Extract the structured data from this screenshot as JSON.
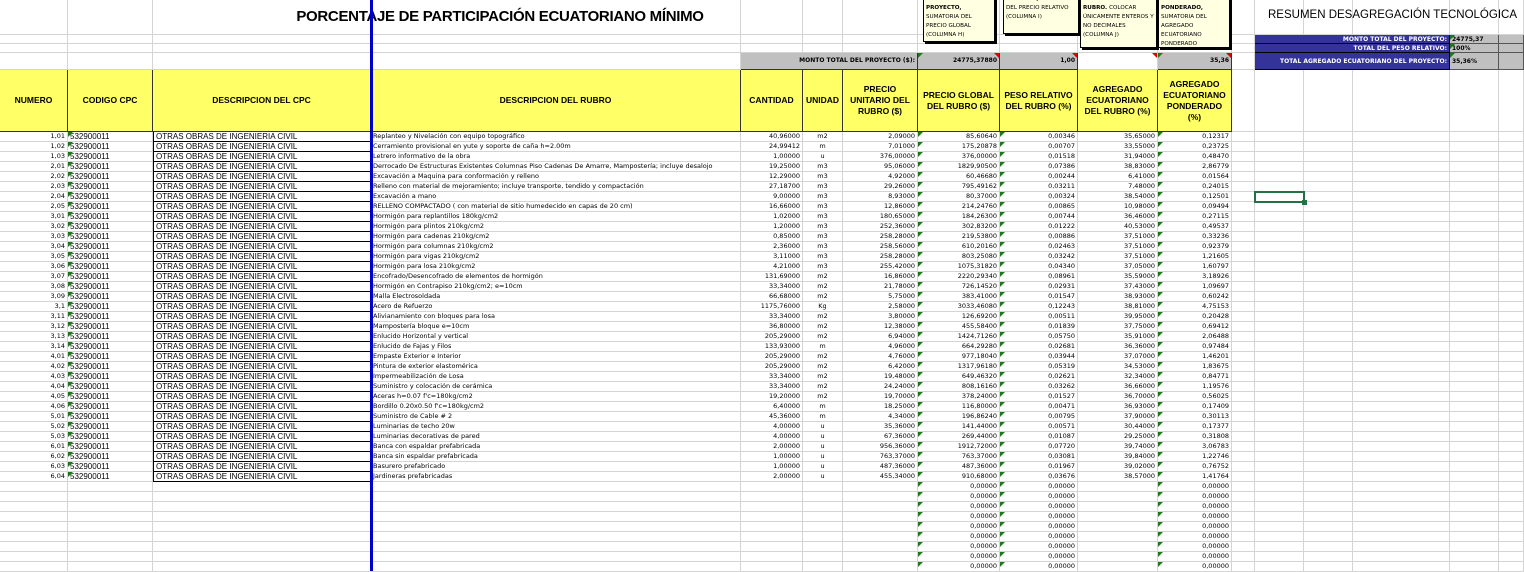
{
  "title": "PORCENTAJE DE PARTICIPACIÓN ECUATORIANO MÍNIMO",
  "summary": {
    "title": "RESUMEN DESAGREGACIÓN TECNOLÓGICA",
    "rows": [
      {
        "label": "MONTO TOTAL DEL PROYECTO:",
        "value": "24775,37"
      },
      {
        "label": "TOTAL DEL PESO RELATIVO:",
        "value": "100%"
      },
      {
        "label": "TOTAL AGREGADO ECUATORIANO DEL PROYECTO:",
        "value": "35,36%"
      }
    ]
  },
  "notes": [
    {
      "bold": "TOTAL DEL PROYECTO,",
      "text": "SUMATORIA DEL PRECIO GLOBAL (COLUMNA H)"
    },
    {
      "bold": "RELATIVO,",
      "text": "SUMATORIA DEL PRECIO RELATIVO (COLUMNA I)"
    },
    {
      "bold": "ECUATORIANO DEL RUBRO.",
      "text": "COLOCAR ÚNICAMENTE ENTEROS Y NO DECIMALES (COLUMNA J)"
    },
    {
      "bold": "ECUATORIANO PONDERADO,",
      "text": "SUMATORIA DEL AGREGADO ECUATORIANO PONDERADO (COLUMNA K)"
    }
  ],
  "totals": {
    "label": "MONTO TOTAL DEL PROYECTO ($):",
    "precio_global": "24775,37880",
    "peso_relativo": "1,00",
    "ponderado": "35,36"
  },
  "headers": [
    "NUMERO",
    "CODIGO CPC",
    "DESCRIPCION DEL CPC",
    "DESCRIPCION DEL RUBRO",
    "CANTIDAD",
    "UNIDAD",
    "PRECIO UNITARIO DEL RUBRO ($)",
    "PRECIO GLOBAL DEL RUBRO ($)",
    "PESO RELATIVO DEL RUBRO (%)",
    "AGREGADO ECUATORIANO DEL RUBRO (%)",
    "AGREGADO ECUATORIANO PONDERADO (%)"
  ],
  "cpc_code": "532900011",
  "cpc_desc": "OTRAS OBRAS DE INGENIERIA CIVIL",
  "rows": [
    [
      "1,01",
      "Replanteo y Nivelación con equipo topográfico",
      "40,96000",
      "m2",
      "2,09000",
      "85,60640",
      "0,00346",
      "35,65000",
      "0,12317"
    ],
    [
      "1,02",
      "Cerramiento provisional en yute y soporte de caña h=2.00m",
      "24,99412",
      "m",
      "7,01000",
      "175,20878",
      "0,00707",
      "33,55000",
      "0,23725"
    ],
    [
      "1,03",
      "Letrero informativo de la obra",
      "1,00000",
      "u",
      "376,00000",
      "376,00000",
      "0,01518",
      "31,94000",
      "0,48470"
    ],
    [
      "2,01",
      "Derrocado De Estructuras Existentes Columnas Piso Cadenas De Amarre, Mampostería; incluye desalojo",
      "19,25000",
      "m3",
      "95,06000",
      "1829,90500",
      "0,07386",
      "38,83000",
      "2,86779"
    ],
    [
      "2,02",
      "Excavación a Maquina para conformación y relleno",
      "12,29000",
      "m3",
      "4,92000",
      "60,46680",
      "0,00244",
      "6,41000",
      "0,01564"
    ],
    [
      "2,03",
      "Relleno con material de mejoramiento; incluye transporte, tendido y compactación",
      "27,18700",
      "m3",
      "29,26000",
      "795,49162",
      "0,03211",
      "7,48000",
      "0,24015"
    ],
    [
      "2,04",
      "Excavación a mano",
      "9,00000",
      "m3",
      "8,93000",
      "80,37000",
      "0,00324",
      "38,54000",
      "0,12501"
    ],
    [
      "2,05",
      "RELLENO COMPACTADO ( con material de sitio humedecido en capas de 20 cm)",
      "16,66000",
      "m3",
      "12,86000",
      "214,24760",
      "0,00865",
      "10,98000",
      "0,09494"
    ],
    [
      "3,01",
      "Hormigón para replantillos 180kg/cm2",
      "1,02000",
      "m3",
      "180,65000",
      "184,26300",
      "0,00744",
      "36,46000",
      "0,27115"
    ],
    [
      "3,02",
      "Hormigón para plintos 210kg/cm2",
      "1,20000",
      "m3",
      "252,36000",
      "302,83200",
      "0,01222",
      "40,53000",
      "0,49537"
    ],
    [
      "3,03",
      "Hormigón para cadenas 210kg/cm2",
      "0,85000",
      "m3",
      "258,28000",
      "219,53800",
      "0,00886",
      "37,51000",
      "0,33236"
    ],
    [
      "3,04",
      "Hormigón para columnas 210kg/cm2",
      "2,36000",
      "m3",
      "258,56000",
      "610,20160",
      "0,02463",
      "37,51000",
      "0,92379"
    ],
    [
      "3,05",
      "Hormigón para vigas 210kg/cm2",
      "3,11000",
      "m3",
      "258,28000",
      "803,25080",
      "0,03242",
      "37,51000",
      "1,21605"
    ],
    [
      "3,06",
      "Hormigón para losa 210kg/cm2",
      "4,21000",
      "m3",
      "255,42000",
      "1075,31820",
      "0,04340",
      "37,05000",
      "1,60797"
    ],
    [
      "3,07",
      "Encofrado/Desencofrado de elementos de hormigón",
      "131,69000",
      "m2",
      "16,86000",
      "2220,29340",
      "0,08961",
      "35,59000",
      "3,18926"
    ],
    [
      "3,08",
      "Hormigón en Contrapiso 210kg/cm2; e=10cm",
      "33,34000",
      "m2",
      "21,78000",
      "726,14520",
      "0,02931",
      "37,43000",
      "1,09697"
    ],
    [
      "3,09",
      "Malla Electrosoldada",
      "66,68000",
      "m2",
      "5,75000",
      "383,41000",
      "0,01547",
      "38,93000",
      "0,60242"
    ],
    [
      "3,1",
      "Acero de Refuerzo",
      "1175,76000",
      "Kg",
      "2,58000",
      "3033,46080",
      "0,12243",
      "38,81000",
      "4,75153"
    ],
    [
      "3,11",
      "Alivianamiento con bloques para losa",
      "33,34000",
      "m2",
      "3,80000",
      "126,69200",
      "0,00511",
      "39,95000",
      "0,20428"
    ],
    [
      "3,12",
      "Mampostería bloque e=10cm",
      "36,80000",
      "m2",
      "12,38000",
      "455,58400",
      "0,01839",
      "37,75000",
      "0,69412"
    ],
    [
      "3,13",
      "Enlucido Horizontal y vertical",
      "205,29000",
      "m2",
      "6,94000",
      "1424,71260",
      "0,05750",
      "35,91000",
      "2,06488"
    ],
    [
      "3,14",
      "Enlucido de Fajas y Filos",
      "133,93000",
      "m",
      "4,96000",
      "664,29280",
      "0,02681",
      "36,36000",
      "0,97484"
    ],
    [
      "4,01",
      "Empaste Exterior e Interior",
      "205,29000",
      "m2",
      "4,76000",
      "977,18040",
      "0,03944",
      "37,07000",
      "1,46201"
    ],
    [
      "4,02",
      "Pintura de exterior elastomérica",
      "205,29000",
      "m2",
      "6,42000",
      "1317,96180",
      "0,05319",
      "34,53000",
      "1,83675"
    ],
    [
      "4,03",
      "Impermeabilización de Losa",
      "33,34000",
      "m2",
      "19,48000",
      "649,46320",
      "0,02621",
      "32,34000",
      "0,84771"
    ],
    [
      "4,04",
      "Suministro y colocación de cerámica",
      "33,34000",
      "m2",
      "24,24000",
      "808,16160",
      "0,03262",
      "36,66000",
      "1,19576"
    ],
    [
      "4,05",
      "Aceras h=0.07 f'c=180kg/cm2",
      "19,20000",
      "m2",
      "19,70000",
      "378,24000",
      "0,01527",
      "36,70000",
      "0,56025"
    ],
    [
      "4,06",
      "Bordillo 0.20x0.50 f'c=180kg/cm2",
      "6,40000",
      "m",
      "18,25000",
      "116,80000",
      "0,00471",
      "36,93000",
      "0,17409"
    ],
    [
      "5,01",
      "Suministro de Cable # 2",
      "45,36000",
      "m",
      "4,34000",
      "196,86240",
      "0,00795",
      "37,90000",
      "0,30113"
    ],
    [
      "5,02",
      "Luminarias de techo 20w",
      "4,00000",
      "u",
      "35,36000",
      "141,44000",
      "0,00571",
      "30,44000",
      "0,17377"
    ],
    [
      "5,03",
      "Luminarias decorativas de pared",
      "4,00000",
      "u",
      "67,36000",
      "269,44000",
      "0,01087",
      "29,25000",
      "0,31808"
    ],
    [
      "6,01",
      "Banca con espaldar prefabricada",
      "2,00000",
      "u",
      "956,36000",
      "1912,72000",
      "0,07720",
      "39,74000",
      "3,06783"
    ],
    [
      "6,02",
      "Banca sin espaldar prefabricada",
      "1,00000",
      "u",
      "763,37000",
      "763,37000",
      "0,03081",
      "39,84000",
      "1,22746"
    ],
    [
      "6,03",
      "Basurero prefabricado",
      "1,00000",
      "u",
      "487,36000",
      "487,36000",
      "0,01967",
      "39,02000",
      "0,76752"
    ],
    [
      "6,04",
      "Jardineras prefabricadas",
      "2,00000",
      "u",
      "455,34000",
      "910,68000",
      "0,03676",
      "38,57000",
      "1,41764"
    ]
  ],
  "empty_row_value": "0,00000",
  "colors": {
    "header": "#ffff66",
    "totals": "#c0c0c0",
    "summary": "#333399",
    "page_break": "#0000cc",
    "selection": "#217346"
  }
}
